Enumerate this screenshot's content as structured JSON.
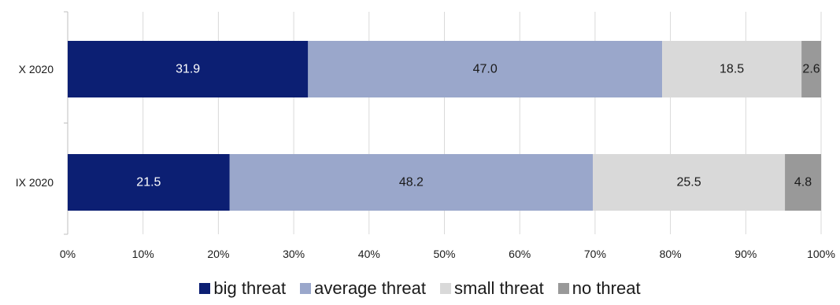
{
  "chart_data": {
    "type": "bar",
    "orientation": "horizontal",
    "stacked": true,
    "percent": true,
    "categories": [
      "X 2020",
      "IX 2020"
    ],
    "series": [
      {
        "name": "big threat",
        "color": "#0c1f73",
        "label_color": "#ffffff",
        "values": [
          31.9,
          21.5
        ]
      },
      {
        "name": "average threat",
        "color": "#9aa7cb",
        "label_color": "#1a1a1a",
        "values": [
          47.0,
          48.2
        ]
      },
      {
        "name": "small threat",
        "color": "#d9d9d9",
        "label_color": "#1a1a1a",
        "values": [
          18.5,
          25.5
        ]
      },
      {
        "name": "no threat",
        "color": "#999999",
        "label_color": "#1a1a1a",
        "values": [
          2.6,
          4.8
        ]
      }
    ],
    "xlim": [
      0,
      100
    ],
    "xticks": [
      "0%",
      "10%",
      "20%",
      "30%",
      "40%",
      "50%",
      "60%",
      "70%",
      "80%",
      "90%",
      "100%"
    ],
    "grid": true,
    "legend_position": "bottom"
  }
}
